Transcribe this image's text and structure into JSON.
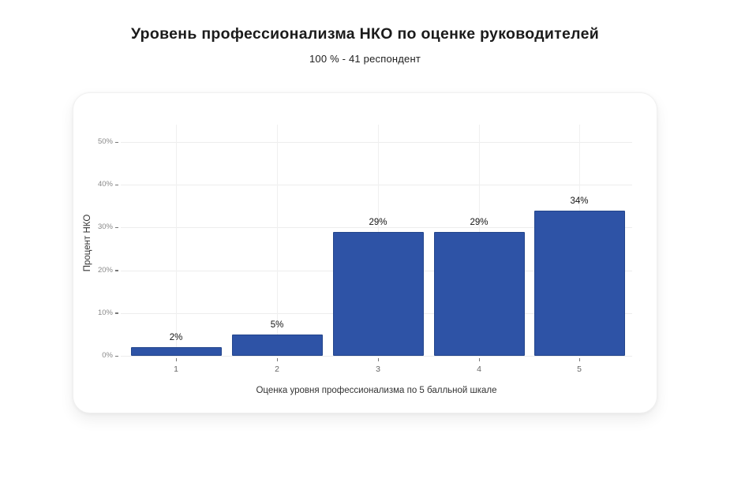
{
  "header": {
    "title": "Уровень профессионализма НКО по оценке руководителей",
    "subtitle": "100 % - 41 респондент"
  },
  "chart_data": {
    "type": "bar",
    "title": "Уровень профессионализма НКО по оценке руководителей",
    "subtitle": "100 % - 41 респондент",
    "categories": [
      "1",
      "2",
      "3",
      "4",
      "5"
    ],
    "values": [
      2,
      5,
      29,
      29,
      34
    ],
    "value_labels": [
      "2%",
      "5%",
      "29%",
      "29%",
      "34%"
    ],
    "xlabel": "Оценка уровня профессионализма по 5 балльной шкале",
    "ylabel": "Процент НКО",
    "ylim": [
      0,
      50
    ],
    "yticks": [
      0,
      10,
      20,
      30,
      40,
      50
    ],
    "ytick_labels": [
      "0%",
      "10%",
      "20%",
      "30%",
      "40%",
      "50%"
    ],
    "grid": true,
    "legend": "none",
    "colors": {
      "bar_fill": "#2e53a6",
      "bar_border": "#24468c",
      "gridline": "#ededed",
      "tick_label": "#8a8a8a",
      "axis_title": "#333333",
      "value_label": "#141414"
    }
  }
}
